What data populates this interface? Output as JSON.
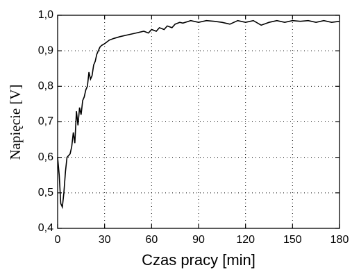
{
  "chart_data": {
    "type": "line",
    "x_label": "Czas pracy [min]",
    "y_label": "Napięcie [V]",
    "x": [
      0,
      1,
      2,
      3,
      4,
      5,
      6,
      8,
      9,
      10,
      11,
      12,
      13,
      14,
      15,
      16,
      17,
      18,
      19,
      20,
      21,
      22,
      23,
      24,
      25,
      26,
      27,
      28,
      30,
      33,
      36,
      40,
      45,
      50,
      55,
      58,
      60,
      63,
      65,
      68,
      70,
      73,
      75,
      78,
      80,
      85,
      90,
      95,
      100,
      105,
      110,
      115,
      120,
      125,
      130,
      135,
      140,
      145,
      150,
      155,
      160,
      165,
      170,
      175,
      180
    ],
    "values": [
      0.6,
      0.55,
      0.47,
      0.46,
      0.5,
      0.56,
      0.6,
      0.61,
      0.63,
      0.67,
      0.64,
      0.73,
      0.69,
      0.74,
      0.72,
      0.76,
      0.77,
      0.79,
      0.8,
      0.84,
      0.82,
      0.83,
      0.86,
      0.87,
      0.89,
      0.9,
      0.91,
      0.915,
      0.92,
      0.93,
      0.935,
      0.94,
      0.945,
      0.95,
      0.955,
      0.95,
      0.96,
      0.955,
      0.965,
      0.96,
      0.97,
      0.965,
      0.975,
      0.98,
      0.978,
      0.985,
      0.98,
      0.985,
      0.983,
      0.98,
      0.975,
      0.985,
      0.98,
      0.985,
      0.972,
      0.98,
      0.985,
      0.98,
      0.985,
      0.983,
      0.985,
      0.98,
      0.985,
      0.98,
      0.983
    ],
    "color": "#000000",
    "xlim": [
      0,
      180
    ],
    "xticks": [
      0,
      30,
      60,
      90,
      120,
      150,
      180
    ],
    "ylim": [
      0.4,
      1.0
    ],
    "yticks": [
      {
        "value": 0.4,
        "label": "0,4"
      },
      {
        "value": 0.5,
        "label": "0,5"
      },
      {
        "value": 0.6,
        "label": "0,6"
      },
      {
        "value": 0.7,
        "label": "0,7"
      },
      {
        "value": 0.8,
        "label": "0,8"
      },
      {
        "value": 0.9,
        "label": "0,9"
      },
      {
        "value": 1.0,
        "label": "1,0"
      }
    ],
    "grid": true
  }
}
